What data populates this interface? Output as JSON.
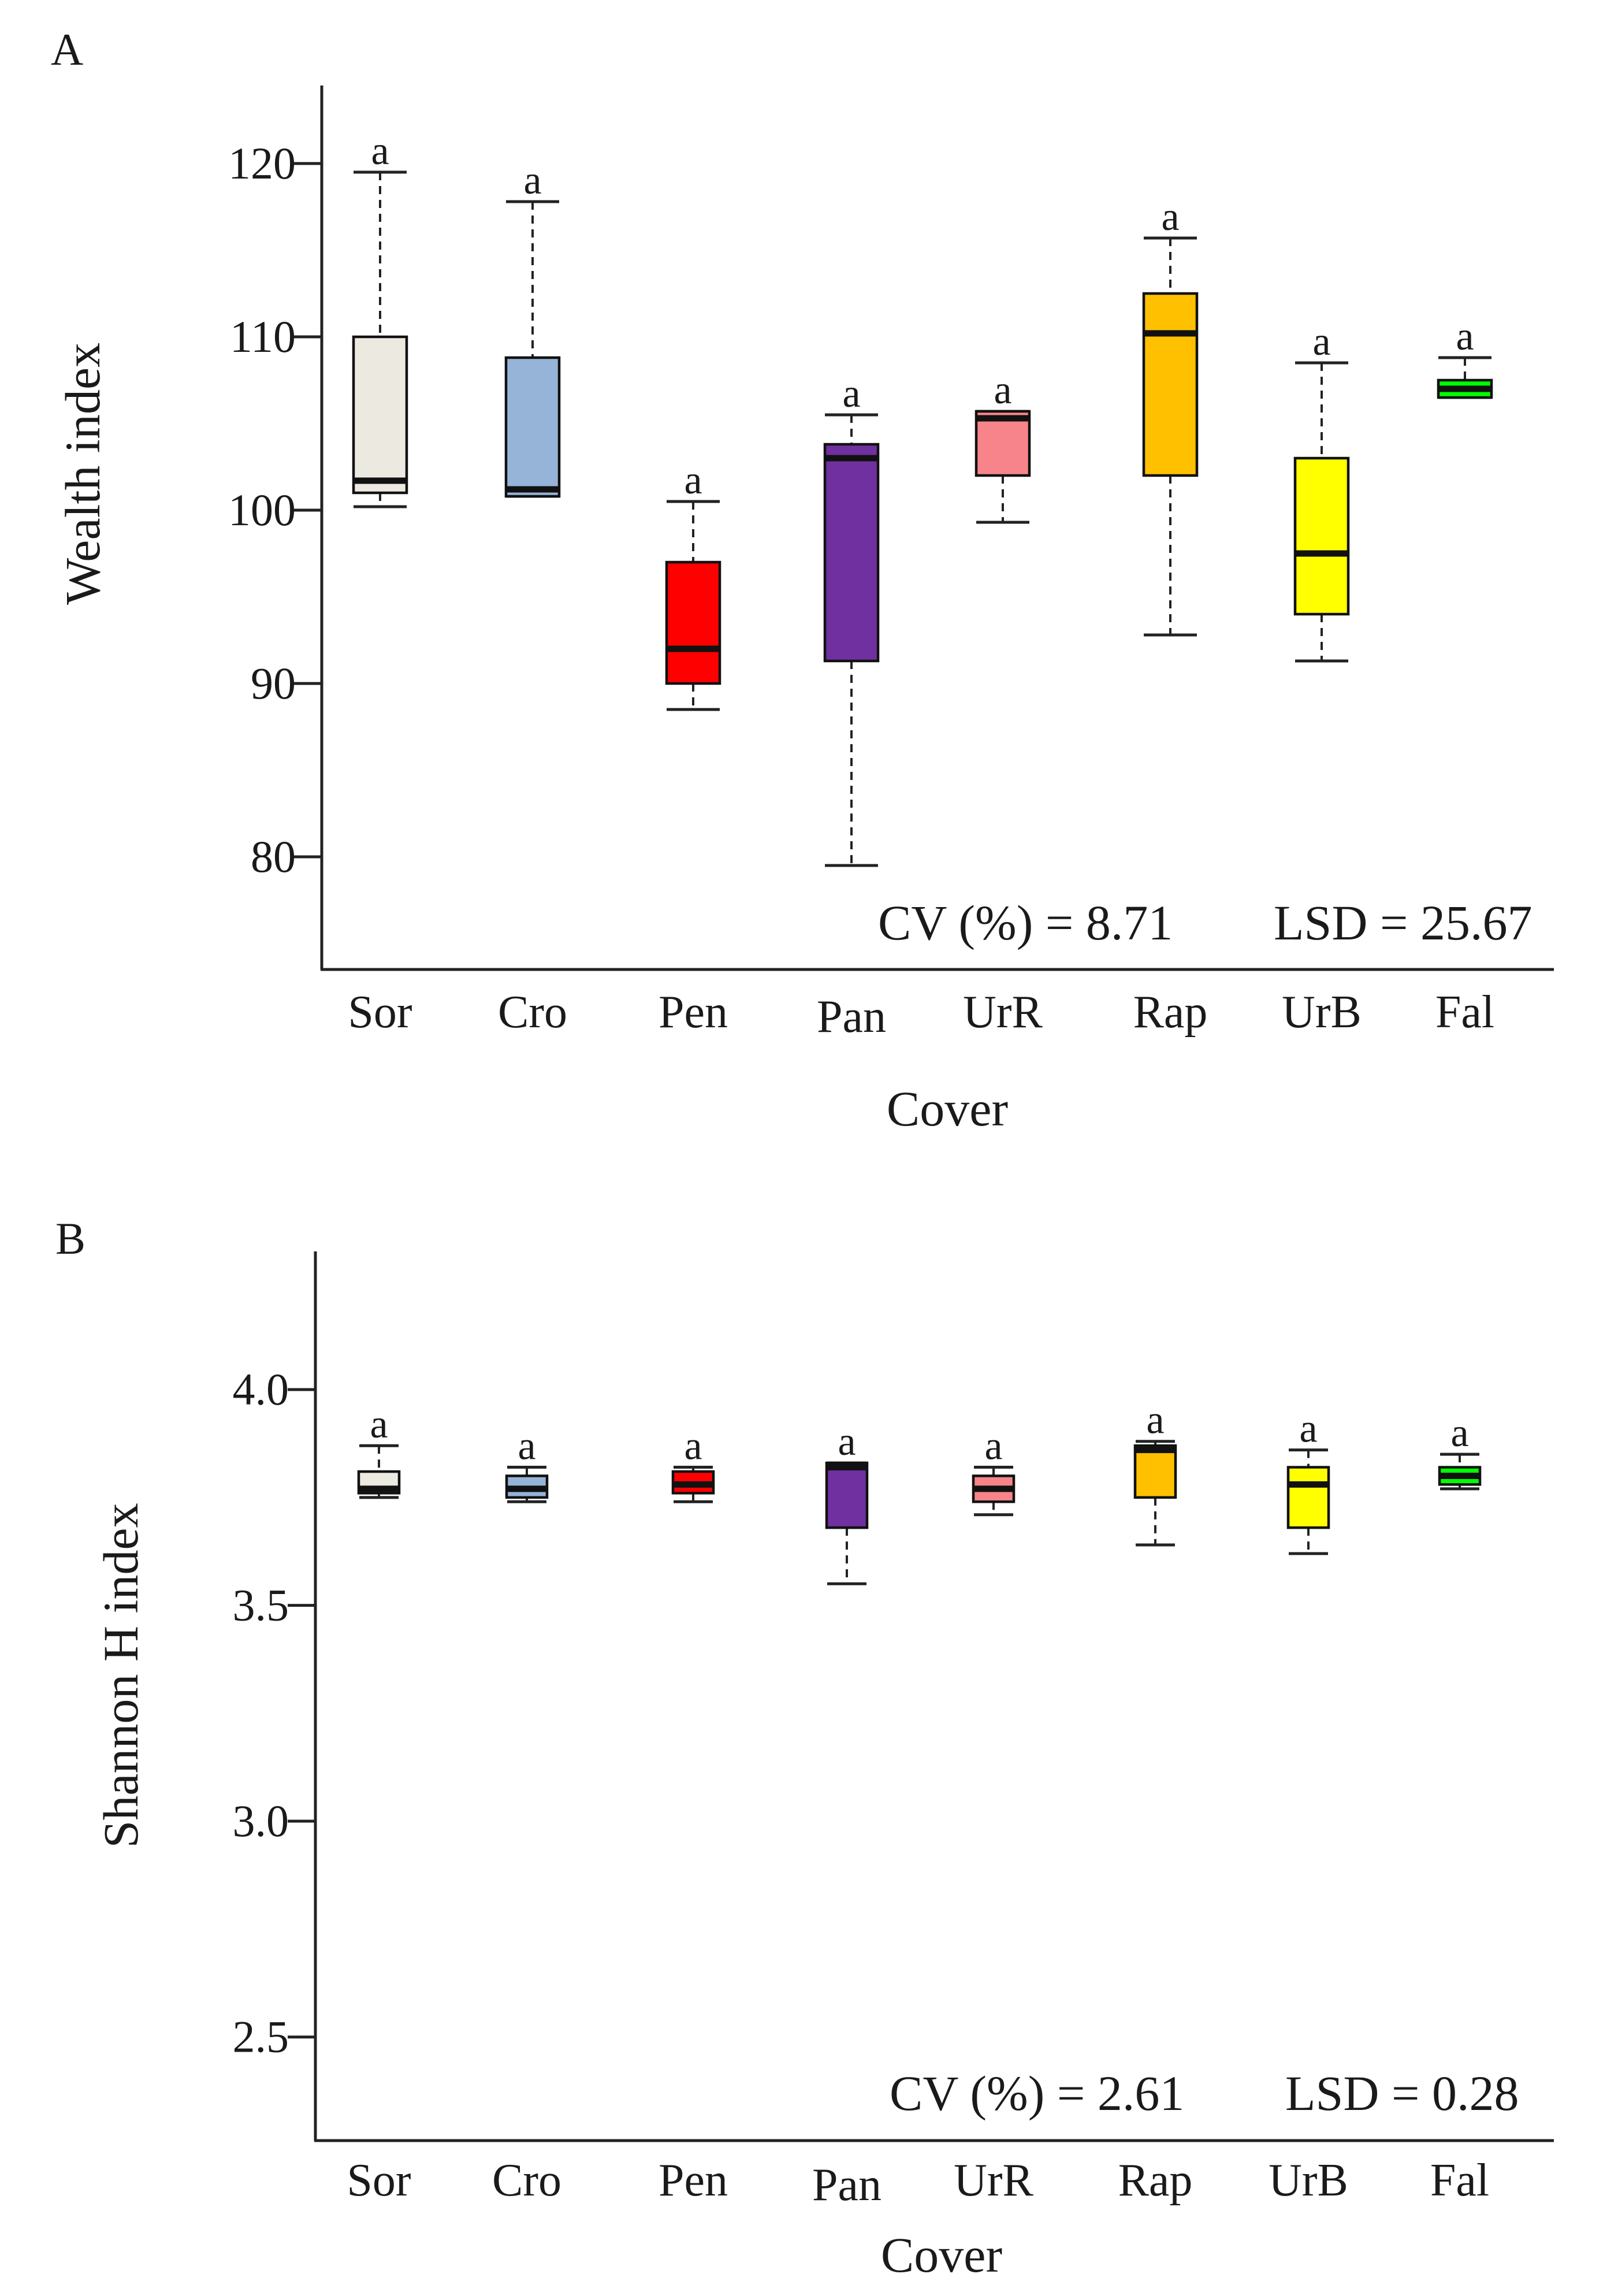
{
  "chart_data": [
    {
      "type": "boxplot",
      "panel": "A",
      "xlabel": "Cover",
      "ylabel": "Wealth index",
      "ylim": [
        73.5,
        124.5
      ],
      "yticks": [
        80,
        90,
        100,
        110,
        120
      ],
      "ytick_labels": [
        "80",
        "90",
        "100",
        "110",
        "120"
      ],
      "annotations": {
        "cv": "CV (%) = 8.71",
        "lsd": "LSD = 25.67"
      },
      "categories": [
        "Sor",
        "Cro",
        "Pen",
        "Pan",
        "UrR",
        "Rap",
        "UrB",
        "Fal"
      ],
      "colors": [
        "#ece9e1",
        "#95b4d7",
        "#ff0000",
        "#7030a0",
        "#f7848a",
        "#ffc000",
        "#ffff00",
        "#00ff00"
      ],
      "series": [
        {
          "name": "Sor",
          "min": 100.2,
          "q1": 101.0,
          "median": 101.7,
          "q3": 110.0,
          "max": 119.5,
          "letter": "a"
        },
        {
          "name": "Cro",
          "min": 100.8,
          "q1": 100.8,
          "median": 101.2,
          "q3": 108.8,
          "max": 117.8,
          "letter": "a"
        },
        {
          "name": "Pen",
          "min": 88.5,
          "q1": 90.0,
          "median": 92.0,
          "q3": 97.0,
          "max": 100.5,
          "letter": "a"
        },
        {
          "name": "Pan",
          "min": 79.5,
          "q1": 91.3,
          "median": 103.0,
          "q3": 103.8,
          "max": 105.5,
          "letter": "a"
        },
        {
          "name": "UrR",
          "min": 99.3,
          "q1": 102.0,
          "median": 105.3,
          "q3": 105.7,
          "max": 105.7,
          "letter": "a"
        },
        {
          "name": "Rap",
          "min": 92.8,
          "q1": 102.0,
          "median": 110.2,
          "q3": 112.5,
          "max": 115.7,
          "letter": "a"
        },
        {
          "name": "UrB",
          "min": 91.3,
          "q1": 94.0,
          "median": 97.5,
          "q3": 103.0,
          "max": 108.5,
          "letter": "a"
        },
        {
          "name": "Fal",
          "min": 106.5,
          "q1": 106.5,
          "median": 107.0,
          "q3": 107.5,
          "max": 108.8,
          "letter": "a"
        }
      ]
    },
    {
      "type": "boxplot",
      "panel": "B",
      "xlabel": "Cover",
      "ylabel": "Shannon H index",
      "ylim": [
        2.26,
        4.32
      ],
      "yticks": [
        2.5,
        3.0,
        3.5,
        4.0
      ],
      "ytick_labels": [
        "2.5",
        "3.0",
        "3.5",
        "4.0"
      ],
      "annotations": {
        "cv": "CV (%) = 2.61",
        "lsd": "LSD = 0.28"
      },
      "categories": [
        "Sor",
        "Cro",
        "Pen",
        "Pan",
        "UrR",
        "Rap",
        "UrB",
        "Fal"
      ],
      "colors": [
        "#ece9e1",
        "#95b4d7",
        "#ff0000",
        "#7030a0",
        "#f7848a",
        "#ffc000",
        "#ffff00",
        "#00ff00"
      ],
      "series": [
        {
          "name": "Sor",
          "min": 3.75,
          "q1": 3.76,
          "median": 3.77,
          "q3": 3.81,
          "max": 3.87,
          "letter": "a"
        },
        {
          "name": "Cro",
          "min": 3.74,
          "q1": 3.75,
          "median": 3.77,
          "q3": 3.8,
          "max": 3.82,
          "letter": "a"
        },
        {
          "name": "Pen",
          "min": 3.74,
          "q1": 3.76,
          "median": 3.78,
          "q3": 3.81,
          "max": 3.82,
          "letter": "a"
        },
        {
          "name": "Pan",
          "min": 3.55,
          "q1": 3.68,
          "median": 3.82,
          "q3": 3.83,
          "max": 3.83,
          "letter": "a"
        },
        {
          "name": "UrR",
          "min": 3.71,
          "q1": 3.74,
          "median": 3.77,
          "q3": 3.8,
          "max": 3.82,
          "letter": "a"
        },
        {
          "name": "Rap",
          "min": 3.64,
          "q1": 3.75,
          "median": 3.86,
          "q3": 3.87,
          "max": 3.88,
          "letter": "a"
        },
        {
          "name": "UrB",
          "min": 3.62,
          "q1": 3.68,
          "median": 3.78,
          "q3": 3.82,
          "max": 3.86,
          "letter": "a"
        },
        {
          "name": "Fal",
          "min": 3.77,
          "q1": 3.78,
          "median": 3.8,
          "q3": 3.82,
          "max": 3.85,
          "letter": "a"
        }
      ]
    }
  ]
}
